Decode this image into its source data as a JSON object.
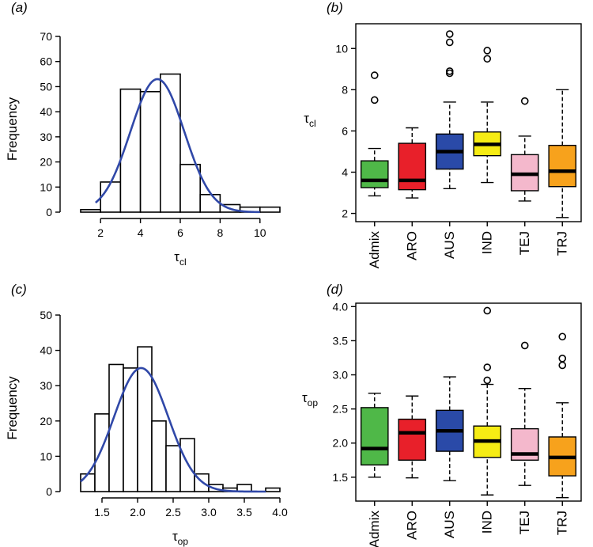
{
  "chart_data": [
    {
      "panel": "(a)",
      "type": "histogram",
      "xlabel_base": "τ",
      "xlabel_sub": "cl",
      "ylabel": "Frequency",
      "xlim": [
        1,
        11
      ],
      "ylim": [
        0,
        70
      ],
      "xticks": [
        2,
        4,
        6,
        8,
        10
      ],
      "yticks": [
        0,
        10,
        20,
        30,
        40,
        50,
        60,
        70
      ],
      "bins": [
        {
          "x0": 1,
          "x1": 2,
          "count": 1
        },
        {
          "x0": 2,
          "x1": 3,
          "count": 12
        },
        {
          "x0": 3,
          "x1": 4,
          "count": 49
        },
        {
          "x0": 4,
          "x1": 5,
          "count": 48
        },
        {
          "x0": 5,
          "x1": 6,
          "count": 55
        },
        {
          "x0": 6,
          "x1": 7,
          "count": 19
        },
        {
          "x0": 7,
          "x1": 8,
          "count": 7
        },
        {
          "x0": 8,
          "x1": 9,
          "count": 3
        },
        {
          "x0": 9,
          "x1": 10,
          "count": 2
        },
        {
          "x0": 10,
          "x1": 11,
          "count": 2
        }
      ],
      "curve": {
        "type": "normal",
        "mean": 4.85,
        "sd": 1.35,
        "peak": 53,
        "x_from": 1.75,
        "x_to": 10.0,
        "color": "#3048a8"
      }
    },
    {
      "panel": "(b)",
      "type": "box",
      "ylabel_base": "τ",
      "ylabel_sub": "cl",
      "ylim": [
        1.6,
        11.2
      ],
      "yticks": [
        2,
        4,
        6,
        8,
        10
      ],
      "categories": [
        "Admix",
        "ARO",
        "AUS",
        "IND",
        "TEJ",
        "TRJ"
      ],
      "boxes": [
        {
          "name": "Admix",
          "color": "#4fb848",
          "whisker_low": 2.85,
          "q1": 3.25,
          "median": 3.6,
          "q3": 4.55,
          "whisker_high": 5.15,
          "outliers": [
            7.5,
            8.7
          ]
        },
        {
          "name": "ARO",
          "color": "#e8202a",
          "whisker_low": 2.75,
          "q1": 3.15,
          "median": 3.6,
          "q3": 5.4,
          "whisker_high": 6.15,
          "outliers": []
        },
        {
          "name": "AUS",
          "color": "#2a4aa8",
          "whisker_low": 3.2,
          "q1": 4.15,
          "median": 5.0,
          "q3": 5.85,
          "whisker_high": 7.4,
          "outliers": [
            8.8,
            8.9,
            10.3,
            10.7
          ]
        },
        {
          "name": "IND",
          "color": "#f6ec14",
          "whisker_low": 3.5,
          "q1": 4.8,
          "median": 5.35,
          "q3": 5.95,
          "whisker_high": 7.4,
          "outliers": [
            9.5,
            9.9
          ]
        },
        {
          "name": "TEJ",
          "color": "#f4b8cc",
          "whisker_low": 2.6,
          "q1": 3.1,
          "median": 3.9,
          "q3": 4.85,
          "whisker_high": 5.75,
          "outliers": [
            7.45
          ]
        },
        {
          "name": "TRJ",
          "color": "#f7a21c",
          "whisker_low": 1.8,
          "q1": 3.3,
          "median": 4.05,
          "q3": 5.3,
          "whisker_high": 8.0,
          "outliers": []
        }
      ]
    },
    {
      "panel": "(c)",
      "type": "histogram",
      "xlabel_base": "τ",
      "xlabel_sub": "op",
      "ylabel": "Frequency",
      "xlim": [
        1.2,
        4.0
      ],
      "ylim": [
        0,
        50
      ],
      "xticks": [
        1.5,
        2.0,
        2.5,
        3.0,
        3.5,
        4.0
      ],
      "xtick_labels": [
        "1.5",
        "2.0",
        "2.5",
        "3.0",
        "3.5",
        "4.0"
      ],
      "yticks": [
        0,
        10,
        20,
        30,
        40,
        50
      ],
      "bins": [
        {
          "x0": 1.2,
          "x1": 1.4,
          "count": 5
        },
        {
          "x0": 1.4,
          "x1": 1.6,
          "count": 22
        },
        {
          "x0": 1.6,
          "x1": 1.8,
          "count": 36
        },
        {
          "x0": 1.8,
          "x1": 2.0,
          "count": 35
        },
        {
          "x0": 2.0,
          "x1": 2.2,
          "count": 41
        },
        {
          "x0": 2.2,
          "x1": 2.4,
          "count": 20
        },
        {
          "x0": 2.4,
          "x1": 2.6,
          "count": 13
        },
        {
          "x0": 2.6,
          "x1": 2.8,
          "count": 15
        },
        {
          "x0": 2.8,
          "x1": 3.0,
          "count": 5
        },
        {
          "x0": 3.0,
          "x1": 3.2,
          "count": 2
        },
        {
          "x0": 3.2,
          "x1": 3.4,
          "count": 1
        },
        {
          "x0": 3.4,
          "x1": 3.6,
          "count": 2
        },
        {
          "x0": 3.6,
          "x1": 3.8,
          "count": 0
        },
        {
          "x0": 3.8,
          "x1": 4.0,
          "count": 1
        }
      ],
      "curve": {
        "type": "normal",
        "mean": 2.05,
        "sd": 0.38,
        "peak": 35,
        "x_from": 1.2,
        "x_to": 3.8,
        "color": "#3048a8"
      }
    },
    {
      "panel": "(d)",
      "type": "box",
      "ylabel_base": "τ",
      "ylabel_sub": "op",
      "ylim": [
        1.15,
        4.05
      ],
      "yticks": [
        1.5,
        2.0,
        2.5,
        3.0,
        3.5,
        4.0
      ],
      "ytick_labels": [
        "1.5",
        "2.0",
        "2.5",
        "3.0",
        "3.5",
        "4.0"
      ],
      "categories": [
        "Admix",
        "ARO",
        "AUS",
        "IND",
        "TEJ",
        "TRJ"
      ],
      "boxes": [
        {
          "name": "Admix",
          "color": "#4fb848",
          "whisker_low": 1.5,
          "q1": 1.68,
          "median": 1.92,
          "q3": 2.52,
          "whisker_high": 2.73,
          "outliers": []
        },
        {
          "name": "ARO",
          "color": "#e8202a",
          "whisker_low": 1.49,
          "q1": 1.75,
          "median": 2.15,
          "q3": 2.35,
          "whisker_high": 2.69,
          "outliers": []
        },
        {
          "name": "AUS",
          "color": "#2a4aa8",
          "whisker_low": 1.45,
          "q1": 1.88,
          "median": 2.18,
          "q3": 2.48,
          "whisker_high": 2.97,
          "outliers": []
        },
        {
          "name": "IND",
          "color": "#f6ec14",
          "whisker_low": 1.24,
          "q1": 1.79,
          "median": 2.03,
          "q3": 2.25,
          "whisker_high": 2.86,
          "outliers": [
            2.92,
            3.11,
            3.94
          ]
        },
        {
          "name": "TEJ",
          "color": "#f4b8cc",
          "whisker_low": 1.38,
          "q1": 1.75,
          "median": 1.84,
          "q3": 2.21,
          "whisker_high": 2.8,
          "outliers": [
            3.43
          ]
        },
        {
          "name": "TRJ",
          "color": "#f7a21c",
          "whisker_low": 1.2,
          "q1": 1.52,
          "median": 1.79,
          "q3": 2.09,
          "whisker_high": 2.59,
          "outliers": [
            3.14,
            3.24,
            3.56
          ]
        }
      ]
    }
  ]
}
